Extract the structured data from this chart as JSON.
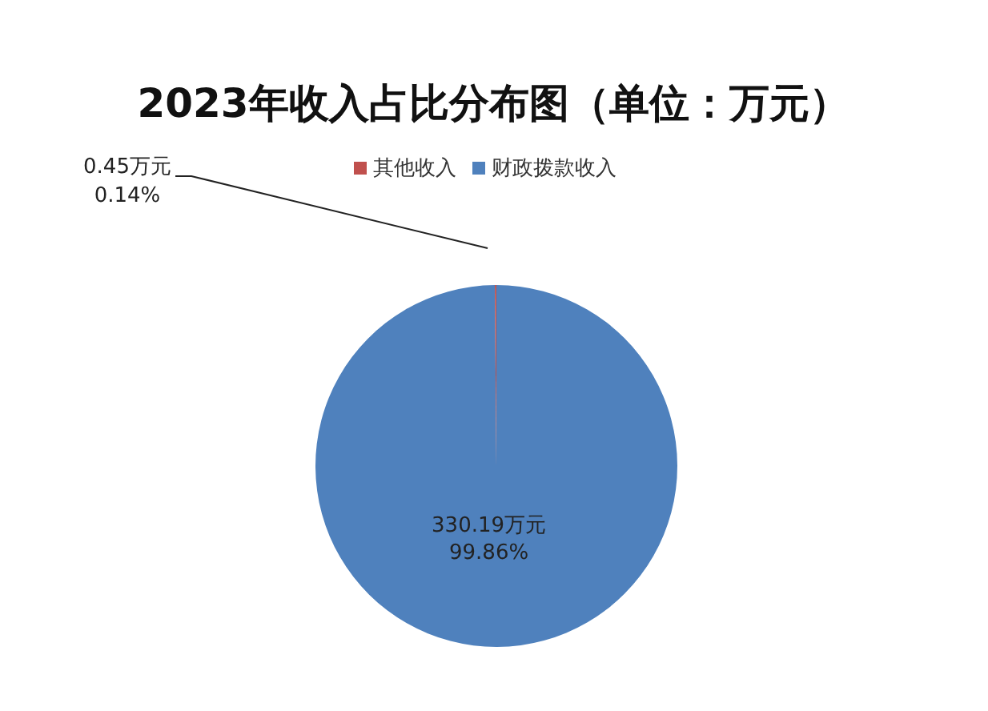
{
  "chart_data": {
    "type": "pie",
    "title": "2023年收入占比分布图（单位：万元）",
    "categories": [
      "财政拨款收入",
      "其他收入"
    ],
    "values": [
      330.19,
      0.45
    ],
    "colors": [
      "#4f81bd",
      "#c0504d"
    ],
    "value_labels": [
      "330.19万元\n99.86%",
      "0.45万元\n0.14%"
    ],
    "legend": "top"
  }
}
